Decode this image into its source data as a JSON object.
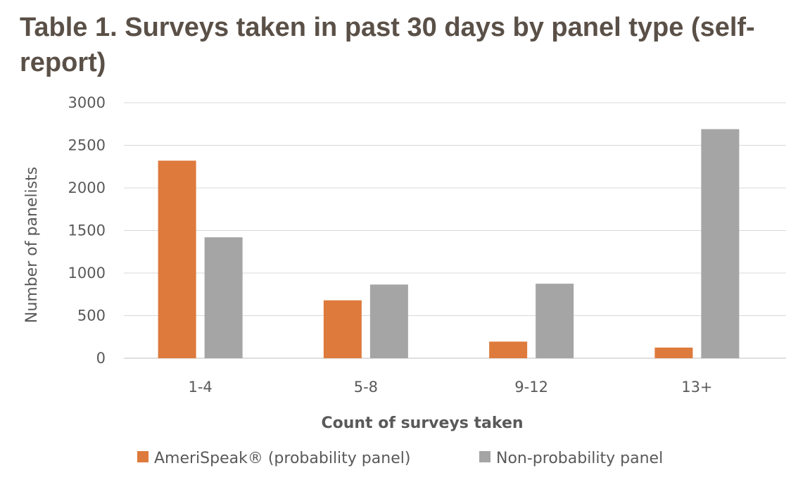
{
  "chart_data": {
    "type": "bar",
    "title": "Table 1. Surveys taken in past 30 days by panel type (self-report)",
    "xlabel": "Count of surveys taken",
    "ylabel": "Number of panelists",
    "categories": [
      "1-4",
      "5-8",
      "9-12",
      "13+"
    ],
    "ylim": [
      0,
      3000
    ],
    "yticks": [
      0,
      500,
      1000,
      1500,
      2000,
      2500,
      3000
    ],
    "grid": true,
    "legend_position": "bottom",
    "series": [
      {
        "name": "AmeriSpeak® (probability panel)",
        "color": "#dd7a3c",
        "values": [
          2320,
          680,
          195,
          125
        ]
      },
      {
        "name": "Non-probability panel",
        "color": "#a5a5a5",
        "values": [
          1420,
          865,
          875,
          2690
        ]
      }
    ]
  }
}
